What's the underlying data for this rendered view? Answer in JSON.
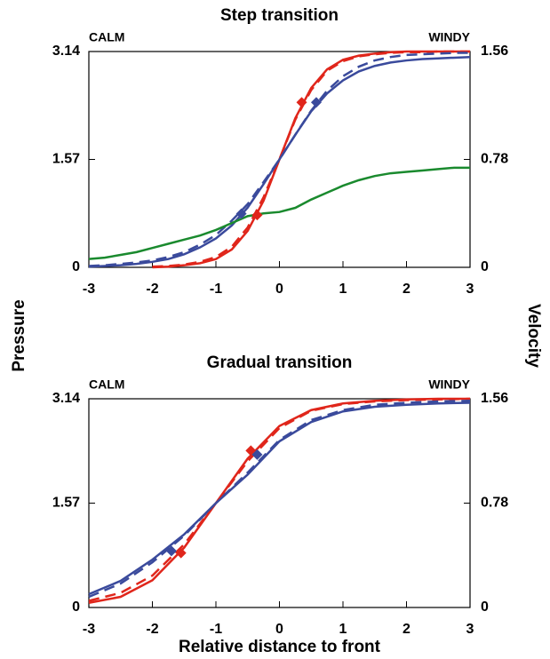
{
  "chart_data": [
    {
      "type": "line",
      "title": "Step transition",
      "annotations": [
        "CALM",
        "WINDY"
      ],
      "ylabel": "Pressure",
      "y2label": "Velocity",
      "x": [
        -3,
        -2.75,
        -2.5,
        -2.25,
        -2,
        -1.75,
        -1.5,
        -1.25,
        -1,
        -0.75,
        -0.5,
        -0.25,
        0,
        0.25,
        0.5,
        0.75,
        1,
        1.25,
        1.5,
        1.75,
        2,
        2.25,
        2.5,
        2.75,
        3
      ],
      "xlim": [
        -3,
        3
      ],
      "xticks": [
        -3,
        -2,
        -1,
        0,
        1,
        2,
        3
      ],
      "ylim": [
        0,
        3.14
      ],
      "yticks": [
        0,
        1.57,
        3.14
      ],
      "y2lim": [
        0,
        1.56
      ],
      "y2ticks": [
        0,
        0.78,
        1.56
      ],
      "series": [
        {
          "color": "#e0261b",
          "dash": false,
          "values": [
            null,
            null,
            null,
            null,
            0.0,
            0.01,
            0.03,
            0.06,
            0.12,
            0.26,
            0.53,
            0.97,
            1.57,
            2.17,
            2.61,
            2.88,
            3.02,
            3.08,
            3.11,
            3.13,
            3.14,
            3.14,
            3.14,
            3.14,
            3.14
          ]
        },
        {
          "color": "#e0261b",
          "dash": true,
          "values": [
            null,
            null,
            null,
            null,
            0.01,
            0.02,
            0.04,
            0.08,
            0.15,
            0.3,
            0.58,
            1.02,
            1.57,
            2.15,
            2.58,
            2.86,
            3.0,
            3.07,
            3.1,
            3.12,
            3.13,
            3.13,
            3.14,
            3.14,
            3.14
          ]
        },
        {
          "color": "#3a4a9c",
          "dash": false,
          "values": [
            0.01,
            0.02,
            0.03,
            0.05,
            0.08,
            0.12,
            0.19,
            0.29,
            0.42,
            0.61,
            0.87,
            1.21,
            1.57,
            1.93,
            2.27,
            2.53,
            2.72,
            2.85,
            2.93,
            2.98,
            3.01,
            3.03,
            3.04,
            3.05,
            3.06
          ]
        },
        {
          "color": "#3a4a9c",
          "dash": true,
          "values": [
            0.02,
            0.03,
            0.05,
            0.07,
            0.1,
            0.15,
            0.22,
            0.33,
            0.47,
            0.68,
            0.92,
            1.24,
            1.57,
            1.93,
            2.28,
            2.57,
            2.78,
            2.92,
            3.01,
            3.06,
            3.09,
            3.1,
            3.11,
            3.12,
            3.12
          ]
        },
        {
          "color": "#1a8a2e",
          "dash": false,
          "axis": "y2",
          "values": [
            0.06,
            0.07,
            0.09,
            0.11,
            0.14,
            0.17,
            0.2,
            0.23,
            0.27,
            0.32,
            0.37,
            0.39,
            0.4,
            0.43,
            0.49,
            0.54,
            0.59,
            0.63,
            0.66,
            0.68,
            0.69,
            0.7,
            0.71,
            0.72,
            0.72
          ]
        }
      ],
      "markers": [
        {
          "color": "#e0261b",
          "x": [
            -0.35,
            0.35
          ],
          "values": [
            0.76,
            2.4
          ]
        },
        {
          "color": "#3a4a9c",
          "x": [
            -0.6,
            0.58
          ],
          "values": [
            0.78,
            2.4
          ]
        }
      ]
    },
    {
      "type": "line",
      "title": "Gradual transition",
      "annotations": [
        "CALM",
        "WINDY"
      ],
      "xlabel": "Relative distance to front",
      "x": [
        -3,
        -2.5,
        -2,
        -1.5,
        -1,
        -0.5,
        0,
        0.5,
        1,
        1.5,
        2,
        2.5,
        3
      ],
      "xlim": [
        -3,
        3
      ],
      "xticks": [
        -3,
        -2,
        -1,
        0,
        1,
        2,
        3
      ],
      "ylim": [
        0,
        3.14
      ],
      "yticks": [
        0,
        1.57,
        3.14
      ],
      "y2lim": [
        0,
        1.56
      ],
      "y2ticks": [
        0,
        0.78,
        1.56
      ],
      "series": [
        {
          "color": "#e0261b",
          "dash": false,
          "values": [
            0.07,
            0.16,
            0.41,
            0.9,
            1.57,
            2.24,
            2.73,
            2.97,
            3.07,
            3.11,
            3.13,
            3.14,
            3.14
          ]
        },
        {
          "color": "#e0261b",
          "dash": true,
          "values": [
            0.1,
            0.22,
            0.48,
            0.95,
            1.57,
            2.2,
            2.7,
            2.96,
            3.06,
            3.1,
            3.12,
            3.13,
            3.14
          ]
        },
        {
          "color": "#3a4a9c",
          "dash": false,
          "values": [
            0.2,
            0.4,
            0.72,
            1.1,
            1.57,
            2.0,
            2.5,
            2.79,
            2.95,
            3.02,
            3.05,
            3.07,
            3.08
          ]
        },
        {
          "color": "#3a4a9c",
          "dash": true,
          "values": [
            0.16,
            0.36,
            0.68,
            1.08,
            1.57,
            2.03,
            2.52,
            2.82,
            2.97,
            3.05,
            3.08,
            3.1,
            3.11
          ]
        }
      ],
      "markers": [
        {
          "color": "#e0261b",
          "x": [
            -1.55,
            -0.45
          ],
          "values": [
            0.82,
            2.36
          ]
        },
        {
          "color": "#3a4a9c",
          "x": [
            -1.7,
            -0.35
          ],
          "values": [
            0.85,
            2.3
          ]
        }
      ]
    }
  ]
}
